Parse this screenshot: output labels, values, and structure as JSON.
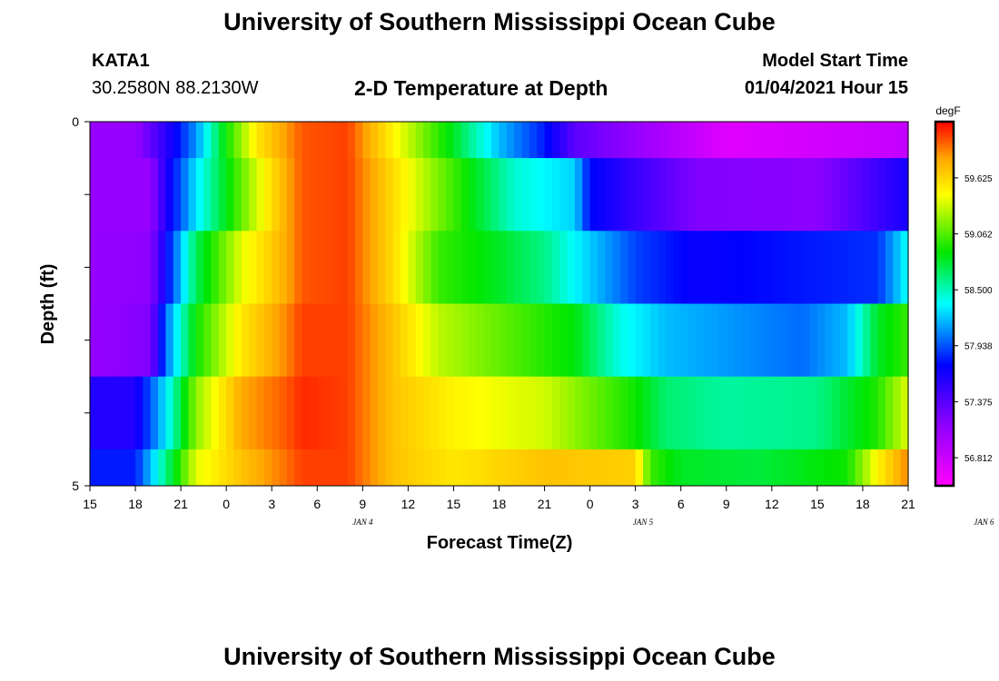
{
  "header": {
    "title": "University of Southern Mississippi Ocean Cube",
    "station_id": "KATA1",
    "station_coords": "30.2580N 88.2130W",
    "plot_title": "2-D Temperature at Depth",
    "model_start_label": "Model Start Time",
    "model_start_value": "01/04/2021 Hour 15"
  },
  "footer": {
    "title": "University of Southern Mississippi Ocean Cube"
  },
  "colors": {
    "background": "#ffffff",
    "text": "#000000",
    "colorbar_border": "#000000"
  },
  "chart_data": {
    "type": "heatmap",
    "xlabel": "Forecast Time(Z)",
    "ylabel": "Depth (ft)",
    "x_tick_labels": [
      "15",
      "18",
      "21",
      "0",
      "3",
      "6",
      "9",
      "12",
      "15",
      "18",
      "21",
      "0",
      "3",
      "6",
      "9",
      "12",
      "15",
      "18",
      "21"
    ],
    "date_labels": [
      "JAN 4",
      "JAN 5",
      "JAN 6"
    ],
    "date_label_positions": [
      18,
      36.5,
      59
    ],
    "y_tick_labels": [
      "0",
      "5"
    ],
    "ylim": [
      0,
      5
    ],
    "x_hours_range": [
      0,
      54
    ],
    "colorbar": {
      "unit": "degF",
      "tick_labels": [
        "59.625",
        "59.062",
        "58.500",
        "57.938",
        "57.375",
        "56.812"
      ],
      "tick_values": [
        59.625,
        59.062,
        58.5,
        57.938,
        57.375,
        56.812
      ],
      "range": [
        56.53,
        60.19
      ]
    },
    "depth_rows": [
      {
        "depth": 0.5,
        "knots": [
          [
            0,
            57.1
          ],
          [
            3,
            57.1
          ],
          [
            5,
            57.55
          ],
          [
            7,
            58.1
          ],
          [
            9,
            58.9
          ],
          [
            11,
            59.55
          ],
          [
            14,
            60.0
          ],
          [
            17,
            60.05
          ],
          [
            20,
            59.5
          ],
          [
            24,
            58.8
          ],
          [
            27,
            58.2
          ],
          [
            30,
            57.8
          ],
          [
            32,
            57.35
          ],
          [
            36,
            57.1
          ],
          [
            42,
            56.7
          ],
          [
            54,
            56.85
          ]
        ]
      },
      {
        "depth": 1.5,
        "knots": [
          [
            0,
            57.1
          ],
          [
            4,
            57.1
          ],
          [
            5,
            57.6
          ],
          [
            7,
            58.3
          ],
          [
            10,
            59.1
          ],
          [
            12,
            59.6
          ],
          [
            14,
            60.0
          ],
          [
            17,
            60.05
          ],
          [
            20,
            59.6
          ],
          [
            23,
            59.15
          ],
          [
            28,
            58.45
          ],
          [
            32,
            58.25
          ],
          [
            33,
            57.75
          ],
          [
            36,
            57.5
          ],
          [
            40,
            57.2
          ],
          [
            48,
            57.15
          ],
          [
            54,
            57.65
          ]
        ]
      },
      {
        "depth": 2.5,
        "knots": [
          [
            0,
            57.1
          ],
          [
            4,
            57.15
          ],
          [
            5,
            57.7
          ],
          [
            7,
            58.7
          ],
          [
            10,
            59.4
          ],
          [
            13,
            59.8
          ],
          [
            14,
            60.0
          ],
          [
            17,
            60.05
          ],
          [
            20,
            59.6
          ],
          [
            23,
            59.0
          ],
          [
            27,
            58.8
          ],
          [
            30,
            58.6
          ],
          [
            32,
            58.35
          ],
          [
            36,
            57.9
          ],
          [
            40,
            57.7
          ],
          [
            52,
            57.85
          ],
          [
            54,
            58.4
          ]
        ]
      },
      {
        "depth": 3.5,
        "knots": [
          [
            0,
            57.1
          ],
          [
            4,
            57.2
          ],
          [
            5,
            58.0
          ],
          [
            7,
            58.9
          ],
          [
            10,
            59.55
          ],
          [
            13,
            59.9
          ],
          [
            14,
            60.05
          ],
          [
            17,
            60.05
          ],
          [
            20,
            59.7
          ],
          [
            23,
            59.3
          ],
          [
            28,
            59.05
          ],
          [
            32,
            58.85
          ],
          [
            35,
            58.4
          ],
          [
            38,
            58.2
          ],
          [
            47,
            58.0
          ],
          [
            50,
            58.2
          ],
          [
            52,
            58.8
          ],
          [
            54,
            59.0
          ]
        ]
      },
      {
        "depth": 4.5,
        "knots": [
          [
            0,
            57.6
          ],
          [
            3,
            57.6
          ],
          [
            5,
            58.3
          ],
          [
            7,
            59.2
          ],
          [
            10,
            59.8
          ],
          [
            13,
            60.0
          ],
          [
            14,
            60.1
          ],
          [
            17,
            60.05
          ],
          [
            20,
            59.7
          ],
          [
            24,
            59.5
          ],
          [
            30,
            59.35
          ],
          [
            36,
            58.9
          ],
          [
            38,
            58.65
          ],
          [
            42,
            58.55
          ],
          [
            48,
            58.6
          ],
          [
            52,
            58.95
          ],
          [
            54,
            59.4
          ]
        ]
      },
      {
        "depth": 5.0,
        "knots": [
          [
            0,
            57.8
          ],
          [
            3,
            57.8
          ],
          [
            5,
            58.6
          ],
          [
            7,
            59.4
          ],
          [
            10,
            59.7
          ],
          [
            13,
            59.95
          ],
          [
            14,
            60.05
          ],
          [
            17,
            60.05
          ],
          [
            20,
            59.7
          ],
          [
            24,
            59.55
          ],
          [
            30,
            59.7
          ],
          [
            36,
            59.65
          ],
          [
            37,
            59.0
          ],
          [
            39,
            58.8
          ],
          [
            44,
            58.75
          ],
          [
            50,
            58.9
          ],
          [
            52,
            59.5
          ],
          [
            54,
            59.9
          ]
        ]
      }
    ]
  }
}
